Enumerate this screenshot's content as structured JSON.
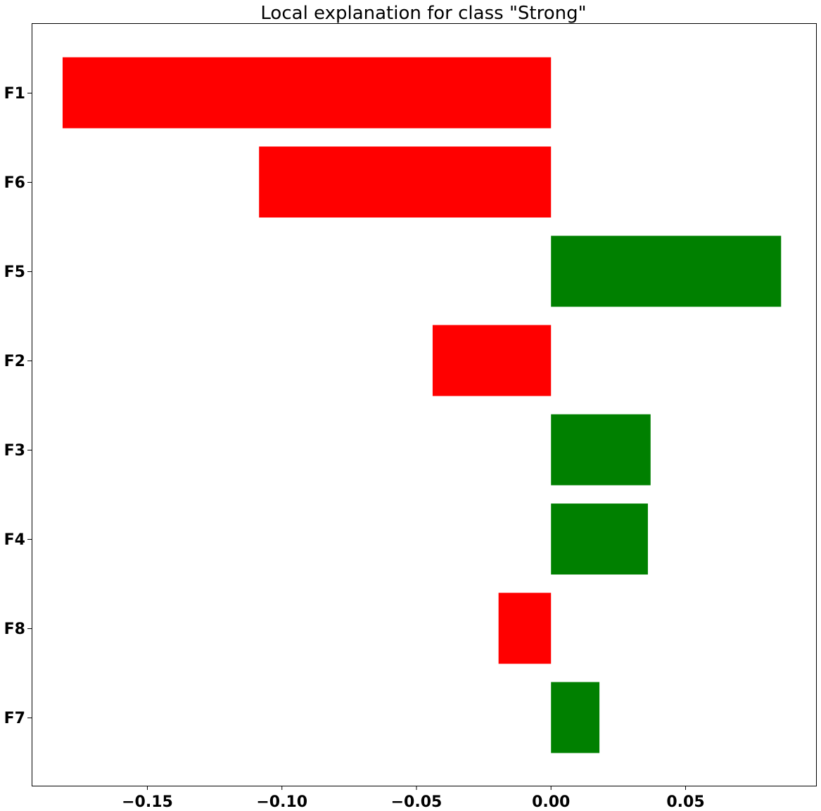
{
  "chart_data": {
    "type": "bar",
    "orientation": "horizontal",
    "title": "Local explanation for class \"Strong\"",
    "xlabel": "",
    "ylabel": "",
    "categories": [
      "F1",
      "F6",
      "F5",
      "F2",
      "F3",
      "F4",
      "F8",
      "F7"
    ],
    "values": [
      -0.1815,
      -0.1085,
      0.0855,
      -0.044,
      0.037,
      0.036,
      -0.0195,
      0.018
    ],
    "xlim": [
      -0.193,
      0.0985
    ],
    "xticks": [
      -0.15,
      -0.1,
      -0.05,
      0.0,
      0.05
    ],
    "xtick_labels": [
      "−0.15",
      "−0.10",
      "−0.05",
      "0.00",
      "0.05"
    ],
    "grid": false,
    "legend": "none",
    "colors": {
      "positive": "#008000",
      "negative": "#ff0000",
      "axis": "#000000",
      "background": "#ffffff"
    }
  }
}
